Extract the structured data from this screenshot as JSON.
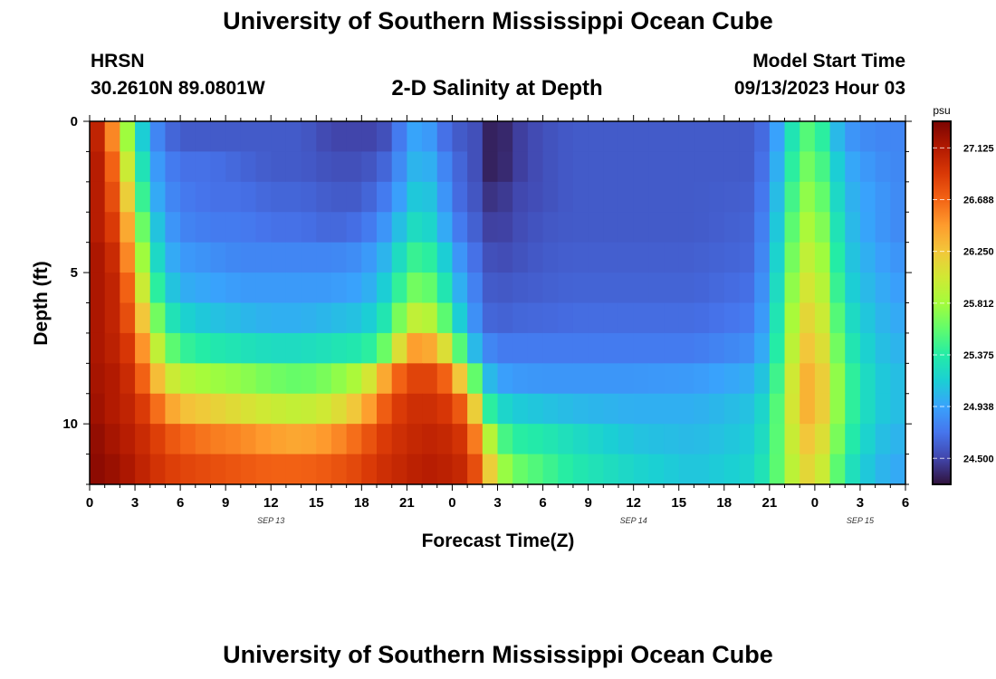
{
  "header": {
    "title": "University of Southern Mississippi Ocean Cube",
    "station": "HRSN",
    "coords": "30.2610N  89.0801W",
    "plot_title": "2-D Salinity at Depth",
    "model_start_label": "Model Start Time",
    "model_start_value": "09/13/2023 Hour 03"
  },
  "footer": {
    "title": "University of Southern Mississippi Ocean Cube"
  },
  "chart_data": {
    "type": "heatmap",
    "xlabel": "Forecast Time(Z)",
    "ylabel": "Depth (ft)",
    "x_range_hours": [
      0,
      54
    ],
    "x_tick_labels": [
      "0",
      "3",
      "6",
      "9",
      "12",
      "15",
      "18",
      "21",
      "0",
      "3",
      "6",
      "9",
      "12",
      "15",
      "18",
      "21",
      "0",
      "3",
      "6"
    ],
    "date_labels": [
      {
        "text": "SEP 13",
        "hour": 12
      },
      {
        "text": "SEP 14",
        "hour": 36
      },
      {
        "text": "SEP 15",
        "hour": 51
      }
    ],
    "y_range_ft": [
      0,
      12
    ],
    "y_ticks": [
      0,
      5,
      10
    ],
    "y_tick_labels": [
      "0",
      "5",
      "10"
    ],
    "colorbar": {
      "unit": "psu",
      "range": [
        24.28,
        27.35
      ],
      "ticks": [
        27.125,
        26.688,
        26.25,
        25.812,
        25.375,
        24.938,
        24.5
      ],
      "tick_labels": [
        "27.125",
        "26.688",
        "26.250",
        "25.812",
        "25.375",
        "24.938",
        "24.500"
      ],
      "colors": [
        "#30123b",
        "#4145ab",
        "#4675ed",
        "#39a2fc",
        "#1bcfd4",
        "#24eca6",
        "#61fc6c",
        "#a4fc3b",
        "#d1e834",
        "#f3c63a",
        "#fe9b2d",
        "#f36315",
        "#d93806",
        "#b11901",
        "#7a0402"
      ]
    },
    "depths_ft": [
      0.5,
      1.5,
      2.5,
      3.5,
      4.5,
      5.5,
      6.5,
      7.5,
      8.5,
      9.5,
      10.5,
      11.5
    ],
    "time_hours": [
      0,
      1,
      2,
      3,
      4,
      5,
      6,
      8,
      10,
      12,
      14,
      16,
      18,
      19,
      20,
      21,
      22,
      23,
      24,
      25,
      26,
      26.5,
      27,
      28,
      30,
      32,
      36,
      40,
      44,
      45,
      47,
      48,
      49,
      50,
      52,
      54
    ],
    "salinity_psu": [
      [
        27.2,
        26.9,
        26.2,
        25.4,
        24.9,
        24.7,
        24.6,
        24.6,
        24.6,
        24.6,
        24.6,
        24.5,
        24.5,
        24.5,
        24.6,
        24.9,
        25.0,
        24.8,
        24.6,
        24.6,
        24.5,
        24.35,
        24.3,
        24.45,
        24.55,
        24.6,
        24.6,
        24.6,
        24.6,
        24.75,
        25.5,
        25.6,
        25.2,
        24.9,
        24.8,
        24.8
      ],
      [
        27.2,
        27.0,
        26.4,
        25.6,
        25.0,
        24.8,
        24.7,
        24.7,
        24.65,
        24.6,
        24.6,
        24.55,
        24.55,
        24.6,
        24.7,
        24.95,
        25.1,
        24.9,
        24.7,
        24.6,
        24.5,
        24.35,
        24.32,
        24.45,
        24.55,
        24.6,
        24.6,
        24.6,
        24.6,
        24.8,
        25.6,
        25.7,
        25.3,
        25.0,
        24.85,
        24.8
      ],
      [
        27.2,
        27.0,
        26.6,
        25.8,
        25.1,
        24.85,
        24.75,
        24.7,
        24.7,
        24.65,
        24.65,
        24.6,
        24.6,
        24.7,
        24.8,
        25.05,
        25.2,
        25.0,
        24.75,
        24.6,
        24.55,
        24.42,
        24.4,
        24.5,
        24.55,
        24.6,
        24.6,
        24.6,
        24.62,
        24.85,
        25.7,
        25.8,
        25.4,
        25.05,
        24.9,
        24.8
      ],
      [
        27.2,
        27.0,
        26.8,
        26.0,
        25.25,
        24.95,
        24.8,
        24.75,
        24.75,
        24.7,
        24.7,
        24.65,
        24.7,
        24.8,
        24.95,
        25.2,
        25.3,
        25.1,
        24.85,
        24.65,
        24.6,
        24.48,
        24.45,
        24.52,
        24.58,
        24.6,
        24.6,
        24.6,
        24.64,
        24.9,
        25.8,
        25.9,
        25.5,
        25.1,
        24.9,
        24.8
      ],
      [
        27.2,
        27.1,
        26.9,
        26.2,
        25.4,
        25.05,
        24.9,
        24.85,
        24.8,
        24.8,
        24.8,
        24.8,
        24.85,
        24.95,
        25.1,
        25.4,
        25.5,
        25.3,
        25.0,
        24.75,
        24.65,
        24.55,
        24.52,
        24.55,
        24.6,
        24.62,
        24.62,
        24.62,
        24.66,
        24.95,
        25.9,
        26.0,
        25.6,
        25.15,
        24.95,
        24.85
      ],
      [
        27.2,
        27.1,
        27.0,
        26.4,
        25.6,
        25.2,
        25.0,
        24.95,
        24.9,
        24.9,
        24.9,
        24.9,
        24.95,
        25.05,
        25.25,
        25.6,
        25.7,
        25.5,
        25.15,
        24.85,
        24.7,
        24.6,
        24.58,
        24.6,
        24.62,
        24.64,
        24.64,
        24.64,
        24.7,
        25.0,
        26.0,
        26.1,
        25.7,
        25.2,
        25.0,
        24.9
      ],
      [
        27.2,
        27.1,
        27.0,
        26.6,
        25.9,
        25.4,
        25.2,
        25.1,
        25.05,
        25.0,
        25.0,
        25.05,
        25.1,
        25.2,
        25.45,
        25.9,
        26.0,
        25.8,
        25.35,
        24.95,
        24.75,
        24.65,
        24.62,
        24.65,
        24.66,
        24.68,
        24.68,
        24.68,
        24.75,
        25.05,
        26.1,
        26.2,
        25.8,
        25.3,
        25.05,
        24.95
      ],
      [
        27.2,
        27.1,
        27.05,
        26.8,
        26.2,
        25.7,
        25.45,
        25.35,
        25.3,
        25.25,
        25.25,
        25.3,
        25.35,
        25.45,
        25.8,
        26.4,
        26.5,
        26.3,
        25.9,
        25.2,
        24.9,
        24.8,
        24.75,
        24.75,
        24.75,
        24.75,
        24.75,
        24.75,
        24.85,
        25.1,
        26.2,
        26.3,
        25.9,
        25.4,
        25.1,
        25.0
      ],
      [
        27.2,
        27.15,
        27.1,
        26.9,
        26.5,
        26.1,
        25.9,
        25.8,
        25.75,
        25.65,
        25.6,
        25.7,
        25.9,
        26.2,
        26.6,
        26.8,
        26.9,
        26.8,
        26.6,
        25.9,
        25.3,
        25.05,
        24.95,
        24.9,
        24.88,
        24.88,
        24.88,
        24.9,
        25.0,
        25.2,
        26.3,
        26.4,
        26.0,
        25.5,
        25.15,
        25.05
      ],
      [
        27.25,
        27.15,
        27.1,
        27.0,
        26.8,
        26.5,
        26.3,
        26.2,
        26.1,
        26.0,
        25.95,
        26.05,
        26.3,
        26.6,
        26.85,
        26.95,
        27.0,
        26.95,
        26.9,
        26.6,
        25.8,
        25.4,
        25.25,
        25.15,
        25.1,
        25.05,
        25.0,
        25.0,
        25.1,
        25.3,
        26.3,
        26.4,
        26.0,
        25.5,
        25.15,
        25.05
      ],
      [
        27.3,
        27.2,
        27.15,
        27.05,
        26.95,
        26.8,
        26.7,
        26.6,
        26.55,
        26.45,
        26.4,
        26.5,
        26.7,
        26.85,
        26.95,
        27.0,
        27.05,
        27.05,
        27.0,
        26.9,
        26.3,
        25.9,
        25.6,
        25.4,
        25.35,
        25.25,
        25.1,
        25.05,
        25.15,
        25.35,
        26.2,
        26.3,
        25.9,
        25.45,
        25.1,
        25.0
      ],
      [
        27.3,
        27.25,
        27.2,
        27.1,
        27.0,
        26.9,
        26.85,
        26.8,
        26.75,
        26.7,
        26.7,
        26.75,
        26.85,
        26.95,
        27.0,
        27.05,
        27.1,
        27.1,
        27.05,
        27.0,
        26.6,
        26.2,
        25.9,
        25.65,
        25.5,
        25.35,
        25.2,
        25.1,
        25.2,
        25.4,
        26.1,
        26.2,
        25.8,
        25.35,
        25.05,
        24.95
      ]
    ]
  }
}
